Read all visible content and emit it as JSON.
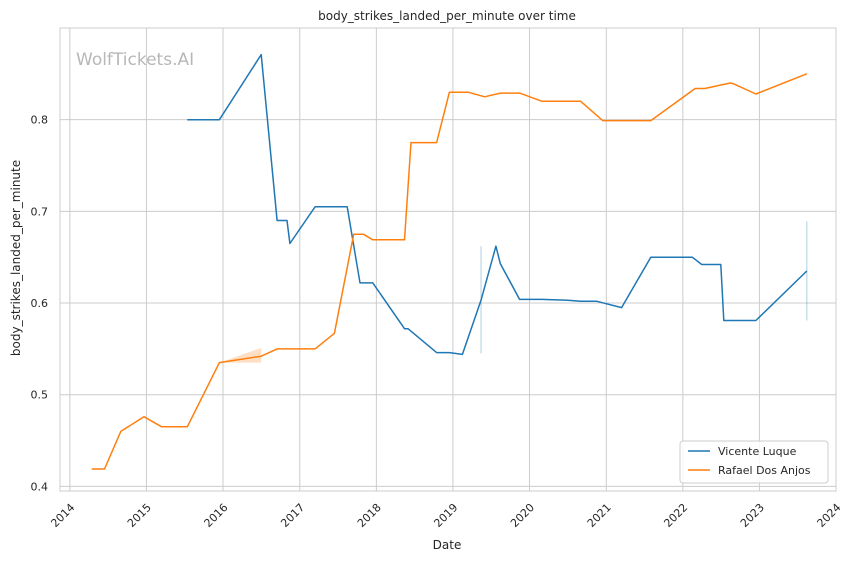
{
  "chart_data": {
    "type": "line",
    "title": "body_strikes_landed_per_minute over time",
    "xlabel": "Date",
    "ylabel": "body_strikes_landed_per_minute",
    "watermark": "WolfTickets.AI",
    "xlim": [
      "2013-11-15",
      "2024-01-01"
    ],
    "ylim": [
      0.395,
      0.9
    ],
    "x_ticks": [
      "2014",
      "2015",
      "2016",
      "2017",
      "2018",
      "2019",
      "2020",
      "2021",
      "2022",
      "2023",
      "2024"
    ],
    "y_ticks": [
      "0.4",
      "0.5",
      "0.6",
      "0.7",
      "0.8"
    ],
    "grid": true,
    "legend_position": "lower-right",
    "series": [
      {
        "name": "Vicente Luque",
        "color": "#1f77b4",
        "points": [
          [
            "2015-07-15",
            0.8
          ],
          [
            "2015-12-15",
            0.8
          ],
          [
            "2016-07-01",
            0.871
          ],
          [
            "2016-09-15",
            0.69
          ],
          [
            "2016-11-01",
            0.69
          ],
          [
            "2016-11-15",
            0.665
          ],
          [
            "2017-03-15",
            0.705
          ],
          [
            "2017-08-15",
            0.705
          ],
          [
            "2017-10-15",
            0.622
          ],
          [
            "2017-12-15",
            0.622
          ],
          [
            "2018-05-15",
            0.572
          ],
          [
            "2018-06-01",
            0.572
          ],
          [
            "2018-10-15",
            0.546
          ],
          [
            "2018-12-15",
            0.546
          ],
          [
            "2019-02-15",
            0.544
          ],
          [
            "2019-05-15",
            0.603
          ],
          [
            "2019-07-25",
            0.662
          ],
          [
            "2019-08-15",
            0.643
          ],
          [
            "2019-11-15",
            0.604
          ],
          [
            "2020-03-01",
            0.604
          ],
          [
            "2020-07-01",
            0.603
          ],
          [
            "2020-09-01",
            0.602
          ],
          [
            "2020-11-15",
            0.602
          ],
          [
            "2021-03-15",
            0.595
          ],
          [
            "2021-08-01",
            0.65
          ],
          [
            "2022-02-15",
            0.65
          ],
          [
            "2022-04-01",
            0.642
          ],
          [
            "2022-07-01",
            0.642
          ],
          [
            "2022-07-15",
            0.581
          ],
          [
            "2022-12-15",
            0.581
          ],
          [
            "2023-08-15",
            0.635
          ]
        ],
        "bands": [
          {
            "x": "2019-05-15",
            "lo": 0.545,
            "hi": 0.662
          },
          {
            "x": "2023-08-15",
            "lo": 0.581,
            "hi": 0.689
          }
        ]
      },
      {
        "name": "Rafael Dos Anjos",
        "color": "#ff7f0e",
        "points": [
          [
            "2014-04-15",
            0.419
          ],
          [
            "2014-06-15",
            0.419
          ],
          [
            "2014-09-01",
            0.46
          ],
          [
            "2014-12-20",
            0.476
          ],
          [
            "2015-03-15",
            0.465
          ],
          [
            "2015-07-15",
            0.465
          ],
          [
            "2015-12-15",
            0.535
          ],
          [
            "2016-07-01",
            0.542
          ],
          [
            "2016-09-15",
            0.55
          ],
          [
            "2017-03-15",
            0.55
          ],
          [
            "2017-06-15",
            0.567
          ],
          [
            "2017-09-15",
            0.675
          ],
          [
            "2017-11-01",
            0.675
          ],
          [
            "2017-12-15",
            0.669
          ],
          [
            "2018-05-15",
            0.669
          ],
          [
            "2018-06-15",
            0.775
          ],
          [
            "2018-10-15",
            0.775
          ],
          [
            "2018-12-15",
            0.83
          ],
          [
            "2019-03-15",
            0.83
          ],
          [
            "2019-06-01",
            0.825
          ],
          [
            "2019-08-15",
            0.829
          ],
          [
            "2019-11-15",
            0.829
          ],
          [
            "2020-03-01",
            0.82
          ],
          [
            "2020-07-01",
            0.82
          ],
          [
            "2020-09-01",
            0.82
          ],
          [
            "2020-12-15",
            0.799
          ],
          [
            "2021-08-01",
            0.799
          ],
          [
            "2022-03-01",
            0.834
          ],
          [
            "2022-04-15",
            0.834
          ],
          [
            "2022-08-15",
            0.84
          ],
          [
            "2022-09-01",
            0.839
          ],
          [
            "2022-12-15",
            0.828
          ],
          [
            "2023-08-15",
            0.85
          ]
        ],
        "bands": [
          {
            "x1": "2015-12-15",
            "x2": "2016-07-01",
            "lo1": 0.535,
            "hi1": 0.535,
            "lo2": 0.535,
            "hi2": 0.551
          }
        ]
      }
    ]
  }
}
